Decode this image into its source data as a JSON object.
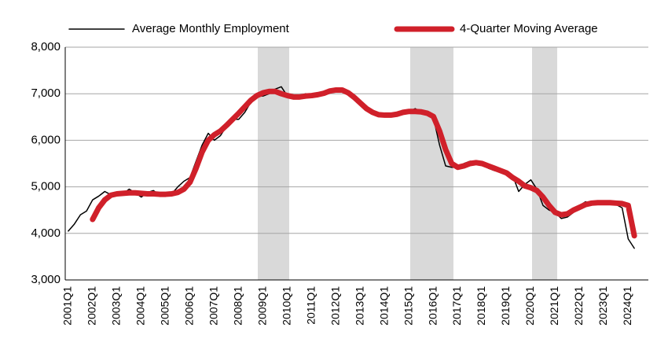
{
  "chart_data": {
    "type": "line",
    "categories": [
      "2001Q1",
      null,
      null,
      null,
      "2002Q1",
      null,
      null,
      null,
      "2003Q1",
      null,
      null,
      null,
      "2004Q1",
      null,
      null,
      null,
      "2005Q1",
      null,
      null,
      null,
      "2006Q1",
      null,
      null,
      null,
      "2007Q1",
      null,
      null,
      null,
      "2008Q1",
      null,
      null,
      null,
      "2009Q1",
      null,
      null,
      null,
      "2010Q1",
      null,
      null,
      null,
      "2011Q1",
      null,
      null,
      null,
      "2012Q1",
      null,
      null,
      null,
      "2013Q1",
      null,
      null,
      null,
      "2014Q1",
      null,
      null,
      null,
      "2015Q1",
      null,
      null,
      null,
      "2016Q1",
      null,
      null,
      null,
      "2017Q1",
      null,
      null,
      null,
      "2018Q1",
      null,
      null,
      null,
      "2019Q1",
      null,
      null,
      null,
      "2020Q1",
      null,
      null,
      null,
      "2021Q1",
      null,
      null,
      null,
      "2022Q1",
      null,
      null,
      null,
      "2023Q1",
      null,
      null,
      null,
      "2024Q1",
      null
    ],
    "series": [
      {
        "name": "Average Monthly Employment",
        "color": "#000000",
        "width": 1.5,
        "values": [
          4050,
          4200,
          4400,
          4480,
          4720,
          4800,
          4900,
          4830,
          4820,
          4850,
          4950,
          4870,
          4780,
          4880,
          4920,
          4820,
          4820,
          4850,
          5000,
          5120,
          5200,
          5550,
          5900,
          6150,
          6000,
          6100,
          6300,
          6450,
          6450,
          6600,
          6820,
          6950,
          6950,
          7000,
          7100,
          7150,
          6950,
          6900,
          6950,
          7000,
          6950,
          6970,
          7000,
          7050,
          7100,
          7100,
          7050,
          6900,
          6800,
          6700,
          6600,
          6520,
          6500,
          6520,
          6580,
          6600,
          6620,
          6680,
          6600,
          6550,
          6480,
          5900,
          5450,
          5420,
          5420,
          5500,
          5550,
          5540,
          5500,
          5400,
          5350,
          5320,
          5300,
          5250,
          4900,
          5050,
          5150,
          4950,
          4600,
          4500,
          4450,
          4320,
          4350,
          4450,
          4600,
          4680,
          4620,
          4660,
          4680,
          4660,
          4620,
          4550,
          3880,
          3680
        ]
      },
      {
        "name": "4-Quarter Moving Average",
        "color": "#d0202a",
        "width": 7,
        "values": [
          null,
          null,
          null,
          null,
          4300,
          4550,
          4720,
          4820,
          4850,
          4860,
          4870,
          4870,
          4860,
          4850,
          4850,
          4840,
          4840,
          4850,
          4880,
          4950,
          5100,
          5400,
          5750,
          6000,
          6120,
          6200,
          6320,
          6450,
          6580,
          6720,
          6860,
          6960,
          7020,
          7050,
          7050,
          7000,
          6960,
          6930,
          6930,
          6950,
          6960,
          6980,
          7010,
          7060,
          7080,
          7080,
          7020,
          6920,
          6800,
          6680,
          6600,
          6550,
          6540,
          6540,
          6560,
          6600,
          6620,
          6620,
          6610,
          6580,
          6510,
          6200,
          5800,
          5500,
          5420,
          5450,
          5500,
          5520,
          5500,
          5450,
          5400,
          5350,
          5300,
          5200,
          5120,
          5020,
          4980,
          4920,
          4780,
          4600,
          4450,
          4400,
          4420,
          4500,
          4560,
          4620,
          4650,
          4660,
          4660,
          4660,
          4650,
          4640,
          4600,
          3950
        ]
      }
    ],
    "ylim": [
      3000,
      8000
    ],
    "yticks": [
      {
        "value": 3000,
        "label": "3,000"
      },
      {
        "value": 4000,
        "label": "4,000"
      },
      {
        "value": 5000,
        "label": "5,000"
      },
      {
        "value": 6000,
        "label": "6,000"
      },
      {
        "value": 7000,
        "label": "7,000"
      },
      {
        "value": 8000,
        "label": "8,000"
      }
    ],
    "grid": true,
    "legend": "top"
  }
}
